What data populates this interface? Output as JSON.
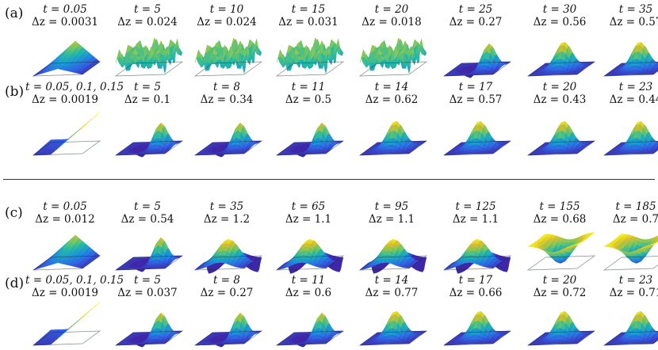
{
  "colors": {
    "viridis": [
      "#3e26a8",
      "#2f62e5",
      "#1b94d6",
      "#22b8a6",
      "#7fc75a",
      "#d6bd2d",
      "#f8f417"
    ]
  },
  "panels": [
    {
      "label": "(a)",
      "cells": [
        {
          "t": "t = 0.05",
          "dz": "Δz = 0.0031",
          "shape": "fold"
        },
        {
          "t": "t = 5",
          "dz": "Δz = 0.024",
          "shape": "noisy"
        },
        {
          "t": "t = 10",
          "dz": "Δz = 0.024",
          "shape": "noisy"
        },
        {
          "t": "t = 15",
          "dz": "Δz = 0.031",
          "shape": "noisy"
        },
        {
          "t": "t = 20",
          "dz": "Δz = 0.018",
          "shape": "noisy"
        },
        {
          "t": "t = 25",
          "dz": "Δz = 0.27",
          "shape": "ramp"
        },
        {
          "t": "t = 30",
          "dz": "Δz = 0.56",
          "shape": "bump"
        },
        {
          "t": "t = 35",
          "dz": "Δz = 0.57",
          "shape": "bump"
        }
      ]
    },
    {
      "label": "(b)",
      "cells": [
        {
          "t": "t = 0.05, 0.1, 0.15",
          "dz": "Δz = 0.0019",
          "shape": "wedge"
        },
        {
          "t": "t = 5",
          "dz": "Δz = 0.1",
          "shape": "ramp"
        },
        {
          "t": "t = 8",
          "dz": "Δz = 0.34",
          "shape": "ramp"
        },
        {
          "t": "t = 11",
          "dz": "Δz = 0.5",
          "shape": "ramp"
        },
        {
          "t": "t = 14",
          "dz": "Δz = 0.62",
          "shape": "bump"
        },
        {
          "t": "t = 17",
          "dz": "Δz = 0.57",
          "shape": "bump"
        },
        {
          "t": "t = 20",
          "dz": "Δz = 0.43",
          "shape": "bump"
        },
        {
          "t": "t = 23",
          "dz": "Δz = 0.44",
          "shape": "bump"
        }
      ]
    },
    {
      "label": "(c)",
      "cells": [
        {
          "t": "t = 0.05",
          "dz": "Δz = 0.012",
          "shape": "fold"
        },
        {
          "t": "t = 5",
          "dz": "Δz = 0.54",
          "shape": "ramp"
        },
        {
          "t": "t = 35",
          "dz": "Δz = 1.2",
          "shape": "saddle"
        },
        {
          "t": "t = 65",
          "dz": "Δz = 1.1",
          "shape": "saddle"
        },
        {
          "t": "t = 95",
          "dz": "Δz = 1.1",
          "shape": "saddle"
        },
        {
          "t": "t = 125",
          "dz": "Δz = 1.1",
          "shape": "saddle"
        },
        {
          "t": "t = 155",
          "dz": "Δz = 0.68",
          "shape": "bowl"
        },
        {
          "t": "t = 185",
          "dz": "Δz = 0.7",
          "shape": "bowl"
        }
      ]
    },
    {
      "label": "(d)",
      "cells": [
        {
          "t": "t = 0.05, 0.1, 0.15",
          "dz": "Δz = 0.0019",
          "shape": "wedge"
        },
        {
          "t": "t = 5",
          "dz": "Δz = 0.037",
          "shape": "ramp"
        },
        {
          "t": "t = 8",
          "dz": "Δz = 0.27",
          "shape": "ramp"
        },
        {
          "t": "t = 11",
          "dz": "Δz = 0.6",
          "shape": "ramp"
        },
        {
          "t": "t = 14",
          "dz": "Δz = 0.77",
          "shape": "bump"
        },
        {
          "t": "t = 17",
          "dz": "Δz = 0.66",
          "shape": "bump"
        },
        {
          "t": "t = 20",
          "dz": "Δz = 0.72",
          "shape": "bump"
        },
        {
          "t": "t = 23",
          "dz": "Δz = 0.71",
          "shape": "bump"
        }
      ]
    }
  ]
}
